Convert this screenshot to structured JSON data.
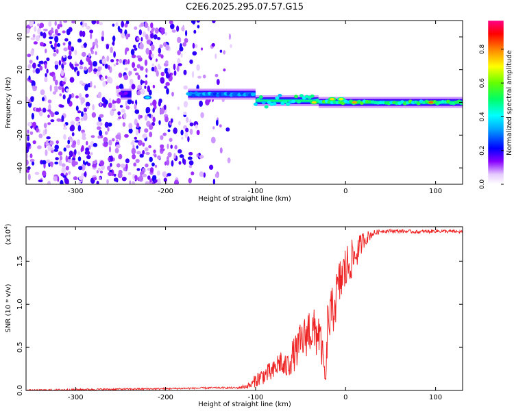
{
  "figure_title": "C2E6.2025.295.07.57.G15",
  "chart_data": [
    {
      "type": "heatmap",
      "title": "C2E6.2025.295.07.57.G15",
      "xlabel": "Height of straight line (km)",
      "ylabel": "Frequency (Hz)",
      "xlim": [
        -355,
        130
      ],
      "ylim": [
        -50,
        50
      ],
      "x_ticks": [
        -300,
        -200,
        -100,
        0,
        100
      ],
      "x_tick_labels": [
        "-300",
        "-200",
        "-100",
        "0",
        "100"
      ],
      "y_ticks": [
        -40,
        -20,
        0,
        20,
        40
      ],
      "y_tick_labels": [
        "-40",
        "-20",
        "0",
        "20",
        "40"
      ],
      "colorbar": {
        "label": "Normalized spectral amplitude",
        "range": [
          0,
          0.97
        ],
        "ticks": [
          0.0,
          0.2,
          0.4,
          0.6,
          0.8
        ],
        "tick_labels": [
          "0.0",
          "0.2",
          "0.4",
          "0.6",
          "0.8"
        ],
        "colors": [
          "#ffffff",
          "#e6ccff",
          "#8800ff",
          "#0000ff",
          "#00ffff",
          "#00ff00",
          "#ffff00",
          "#ff8800",
          "#ff0000",
          "#ff0088"
        ]
      },
      "noise_region_x": [
        -355,
        -120
      ],
      "line_segments": [
        {
          "x": [
            -250,
            -238
          ],
          "y": 5,
          "amp": 0.2
        },
        {
          "x": [
            -175,
            -100
          ],
          "y": 5,
          "amp": 0.35
        },
        {
          "x": [
            -100,
            -30
          ],
          "y": 1,
          "amp": 0.5
        },
        {
          "x": [
            -30,
            130
          ],
          "y": 0,
          "amp": 0.55
        }
      ],
      "peaks": [
        {
          "x": 95,
          "y": 0,
          "amp": 0.85
        },
        {
          "x": 10,
          "y": 0,
          "amp": 0.8
        },
        {
          "x": -15,
          "y": 2,
          "amp": 0.75
        },
        {
          "x": -5,
          "y": 2,
          "amp": 0.7
        },
        {
          "x": -35,
          "y": 0,
          "amp": 0.75
        },
        {
          "x": -220,
          "y": 3,
          "amp": 0.4
        }
      ]
    },
    {
      "type": "line",
      "xlabel": "Height of straight line (km)",
      "ylabel": "SNR (10 * v/v)",
      "y_multiplier_label": "(x10",
      "y_multiplier_exponent": "4",
      "y_multiplier_close": ")",
      "xlim": [
        -355,
        130
      ],
      "ylim": [
        0,
        1.9
      ],
      "x_ticks": [
        -300,
        -200,
        -100,
        0,
        100
      ],
      "x_tick_labels": [
        "-300",
        "-200",
        "-100",
        "0",
        "100"
      ],
      "y_ticks": [
        0.0,
        0.5,
        1.0,
        1.5
      ],
      "y_tick_labels": [
        "0.0",
        "0.5",
        "1.0",
        "1.5"
      ],
      "color": "#ee2222",
      "series": [
        {
          "name": "SNR",
          "x": [
            -355,
            -300,
            -200,
            -150,
            -120,
            -105,
            -100,
            -95,
            -90,
            -85,
            -80,
            -75,
            -72,
            -70,
            -65,
            -60,
            -55,
            -50,
            -45,
            -40,
            -35,
            -30,
            -25,
            -22,
            -20,
            -15,
            -10,
            -5,
            0,
            5,
            10,
            15,
            20,
            30,
            40,
            60,
            80,
            100,
            130
          ],
          "y": [
            0.0,
            0.01,
            0.02,
            0.03,
            0.03,
            0.06,
            0.12,
            0.15,
            0.18,
            0.2,
            0.22,
            0.3,
            0.35,
            0.25,
            0.28,
            0.38,
            0.45,
            0.55,
            0.62,
            0.72,
            0.65,
            0.7,
            0.38,
            0.08,
            0.75,
            0.9,
            1.1,
            1.3,
            1.4,
            1.5,
            1.55,
            1.65,
            1.75,
            1.82,
            1.85,
            1.85,
            1.84,
            1.85,
            1.84
          ],
          "noise_amplitude": [
            0.01,
            0.01,
            0.01,
            0.01,
            0.01,
            0.04,
            0.08,
            0.1,
            0.1,
            0.12,
            0.12,
            0.15,
            0.15,
            0.12,
            0.15,
            0.2,
            0.2,
            0.25,
            0.25,
            0.3,
            0.3,
            0.3,
            0.15,
            0.05,
            0.3,
            0.3,
            0.3,
            0.3,
            0.3,
            0.25,
            0.2,
            0.15,
            0.1,
            0.04,
            0.02,
            0.02,
            0.02,
            0.02,
            0.02
          ]
        }
      ]
    }
  ]
}
